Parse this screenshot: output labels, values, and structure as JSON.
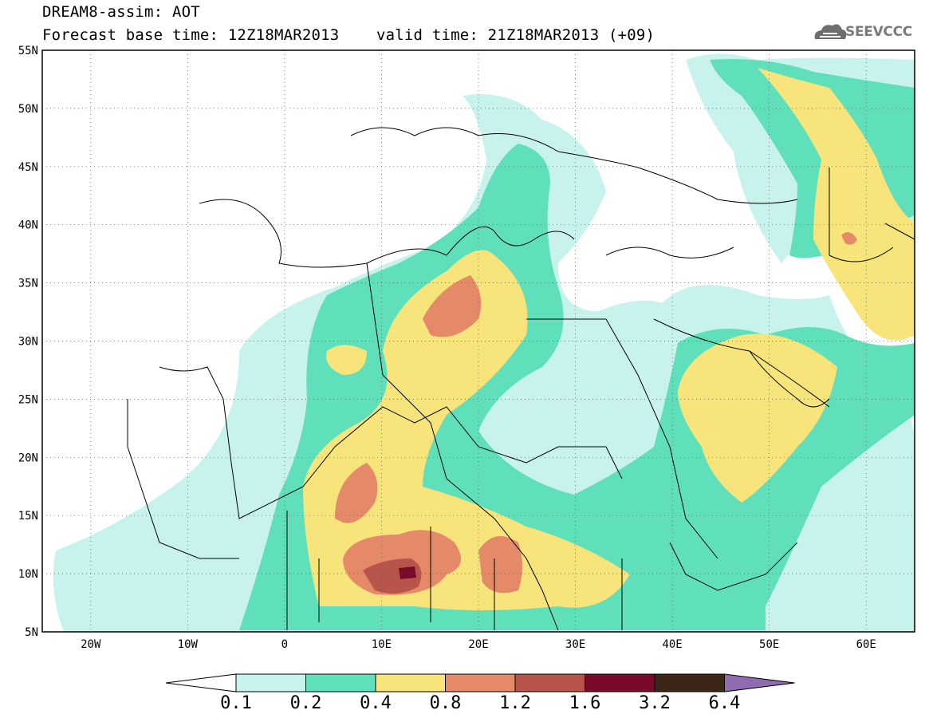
{
  "title": {
    "line1": "DREAM8-assim: AOT",
    "line2": "Forecast base time: 12Z18MAR2013    valid time: 21Z18MAR2013 (+09)"
  },
  "logo": {
    "text": "SEEVCCC",
    "icon": "cloud-logo-icon"
  },
  "axes": {
    "lat_labels": [
      "55N",
      "50N",
      "45N",
      "40N",
      "35N",
      "30N",
      "25N",
      "20N",
      "15N",
      "10N",
      "5N"
    ],
    "lat_values": [
      55,
      50,
      45,
      40,
      35,
      30,
      25,
      20,
      15,
      10,
      5
    ],
    "lon_labels": [
      "20W",
      "10W",
      "0",
      "10E",
      "20E",
      "30E",
      "40E",
      "50E",
      "60E"
    ],
    "lon_values": [
      -20,
      -10,
      0,
      10,
      20,
      30,
      40,
      50,
      60
    ],
    "lon_range": [
      -25,
      65
    ],
    "lat_range": [
      5,
      55
    ],
    "grid": "dotted"
  },
  "colorbar": {
    "labels": [
      "0.1",
      "0.2",
      "0.4",
      "0.8",
      "1.2",
      "1.6",
      "3.2",
      "6.4"
    ],
    "colors": [
      "#ffffff",
      "#c8f3ec",
      "#5fe0bb",
      "#f7e47a",
      "#e58a68",
      "#b8554a",
      "#7a0a2a",
      "#3d2518",
      "#8f6bb0"
    ]
  }
}
